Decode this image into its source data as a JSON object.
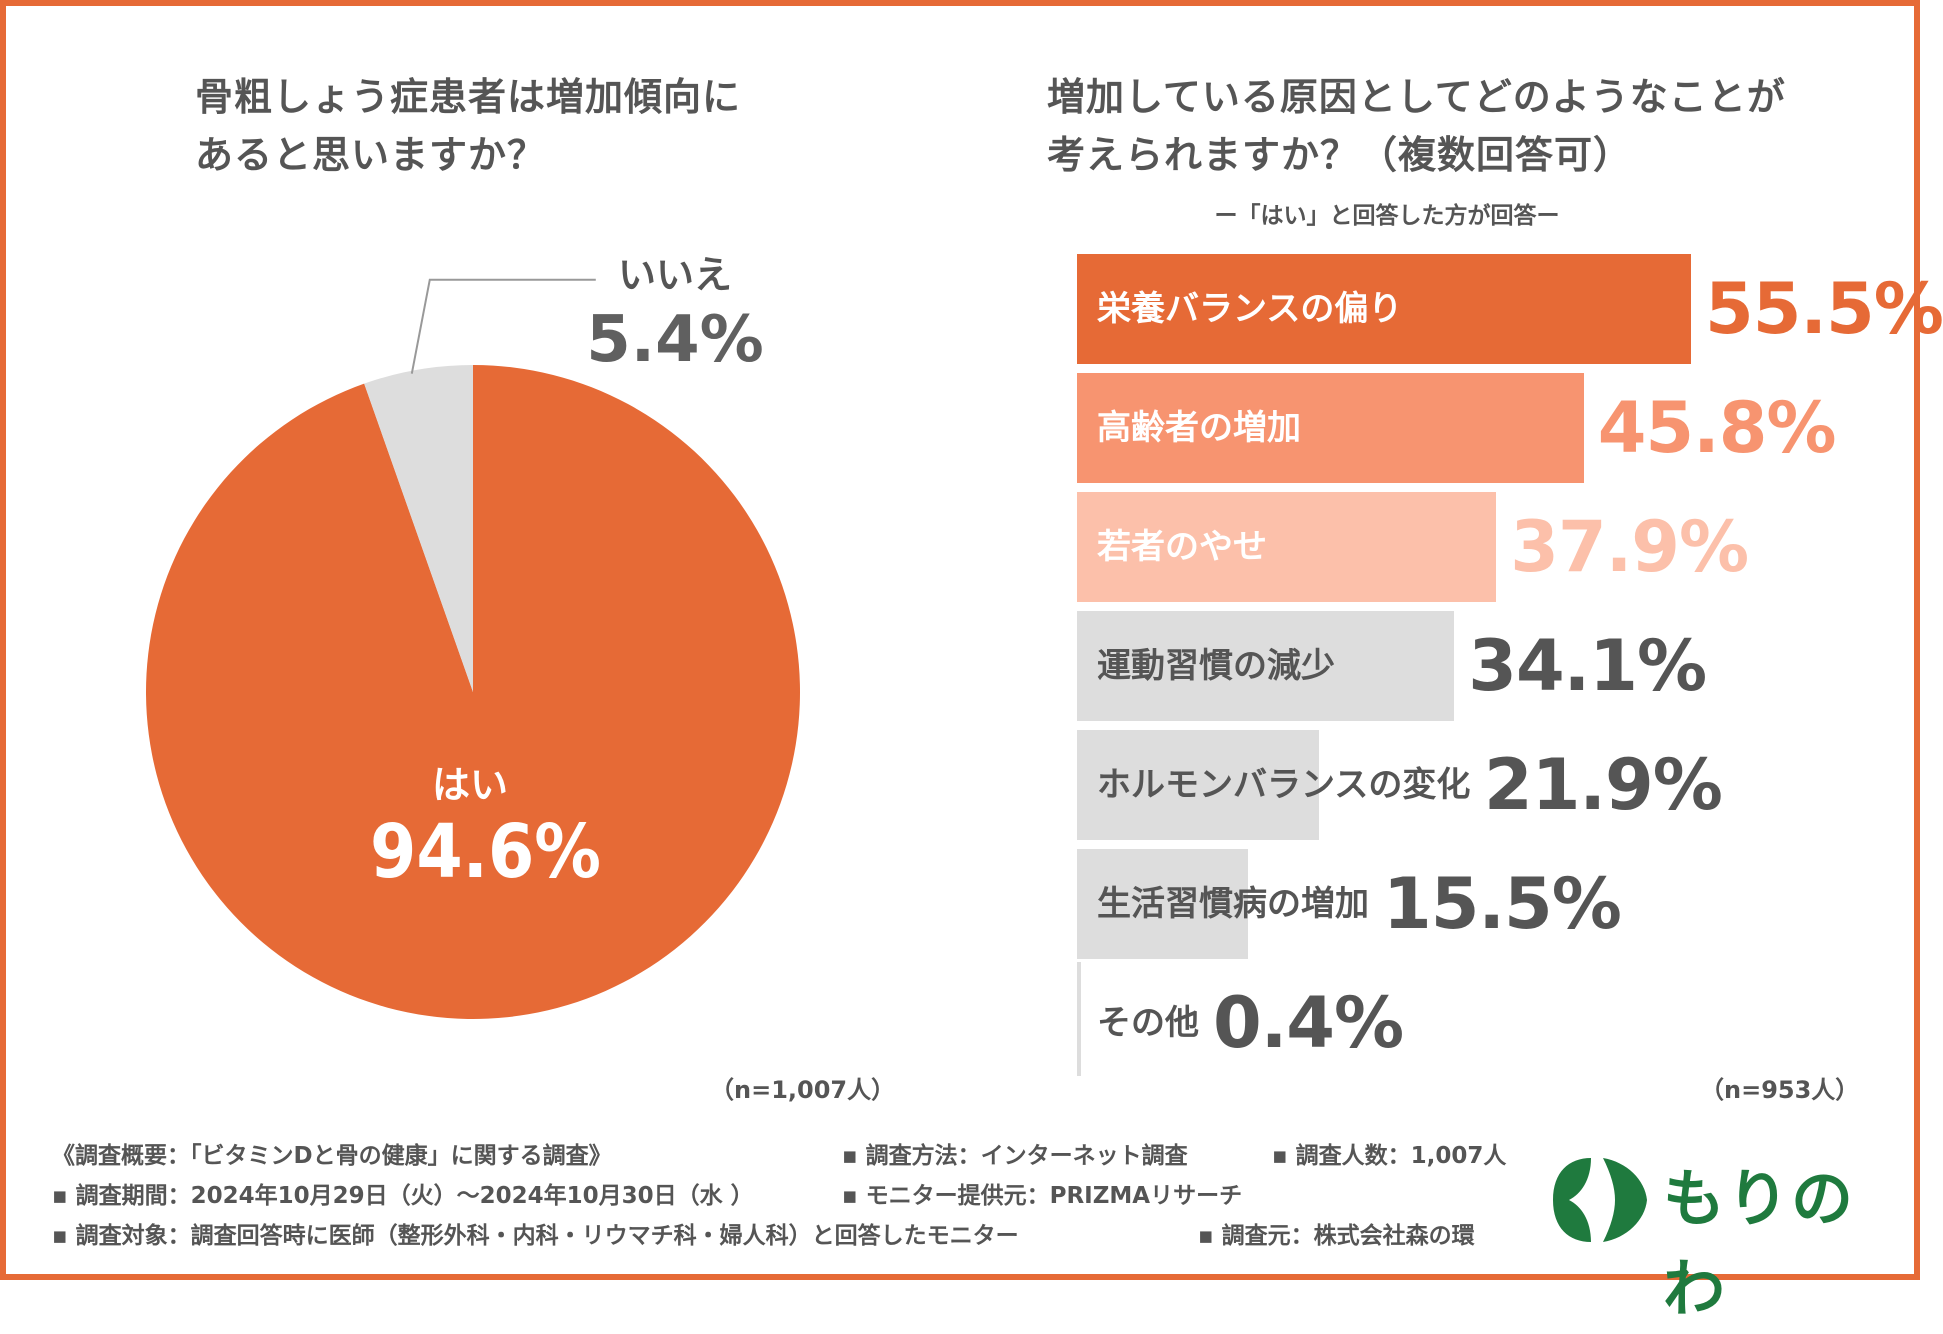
{
  "colors": {
    "accent": "#e66a36",
    "bar_second": "#f79470",
    "bar_third": "#fcc0aa",
    "gray_bar": "#dddddd",
    "pie_no": "#dddddd",
    "logo_green": "#1f7a3e"
  },
  "left_title": {
    "line1": "骨粗しょう症患者は増加傾向に",
    "line2": "あると思いますか？"
  },
  "right_title": {
    "line1": "増加している原因としてどのようなことが",
    "line2": "考えられますか？（複数回答可）",
    "subtitle": "ー「はい」と回答した方が回答ー"
  },
  "chart_data": [
    {
      "type": "pie",
      "title": "骨粗しょう症患者は増加傾向にあると思いますか？",
      "slices": [
        {
          "label": "はい",
          "value": 94.6,
          "value_text": "94.6%"
        },
        {
          "label": "いいえ",
          "value": 5.4,
          "value_text": "5.4%"
        }
      ],
      "note": "（n=1,007人）"
    },
    {
      "type": "bar",
      "orientation": "horizontal",
      "title": "増加している原因としてどのようなことが考えられますか？（複数回答可）",
      "xlim": [
        0,
        60
      ],
      "categories": [
        "栄養バランスの偏り",
        "高齢者の増加",
        "若者のやせ",
        "運動習慣の減少",
        "ホルモンバランスの変化",
        "生活習慣病の増加",
        "その他"
      ],
      "values": [
        55.5,
        45.8,
        37.9,
        34.1,
        21.9,
        15.5,
        0.4
      ],
      "value_texts": [
        "55.5%",
        "45.8%",
        "37.9%",
        "34.1%",
        "21.9%",
        "15.5%",
        "0.4%"
      ],
      "note": "（n=953人）"
    }
  ],
  "footer": {
    "survey_name": "《調査概要：「ビタミンDと骨の健康」に関する調査》",
    "period": "▪ 調査期間：2024年10月29日（火）～2024年10月30日（水 ）",
    "target": "▪ 調査対象：調査回答時に医師（整形外科・内科・リウマチ科・婦人科）と回答したモニター",
    "method": "▪ 調査方法：インターネット調査",
    "count": "▪ 調査人数：1,007人",
    "monitor": "▪ モニター提供元：PRIZMAリサーチ",
    "source": "▪ 調査元：株式会社森の環"
  },
  "logo": {
    "text": "もりのわ",
    "icon": "leaf-arrow-icon"
  }
}
